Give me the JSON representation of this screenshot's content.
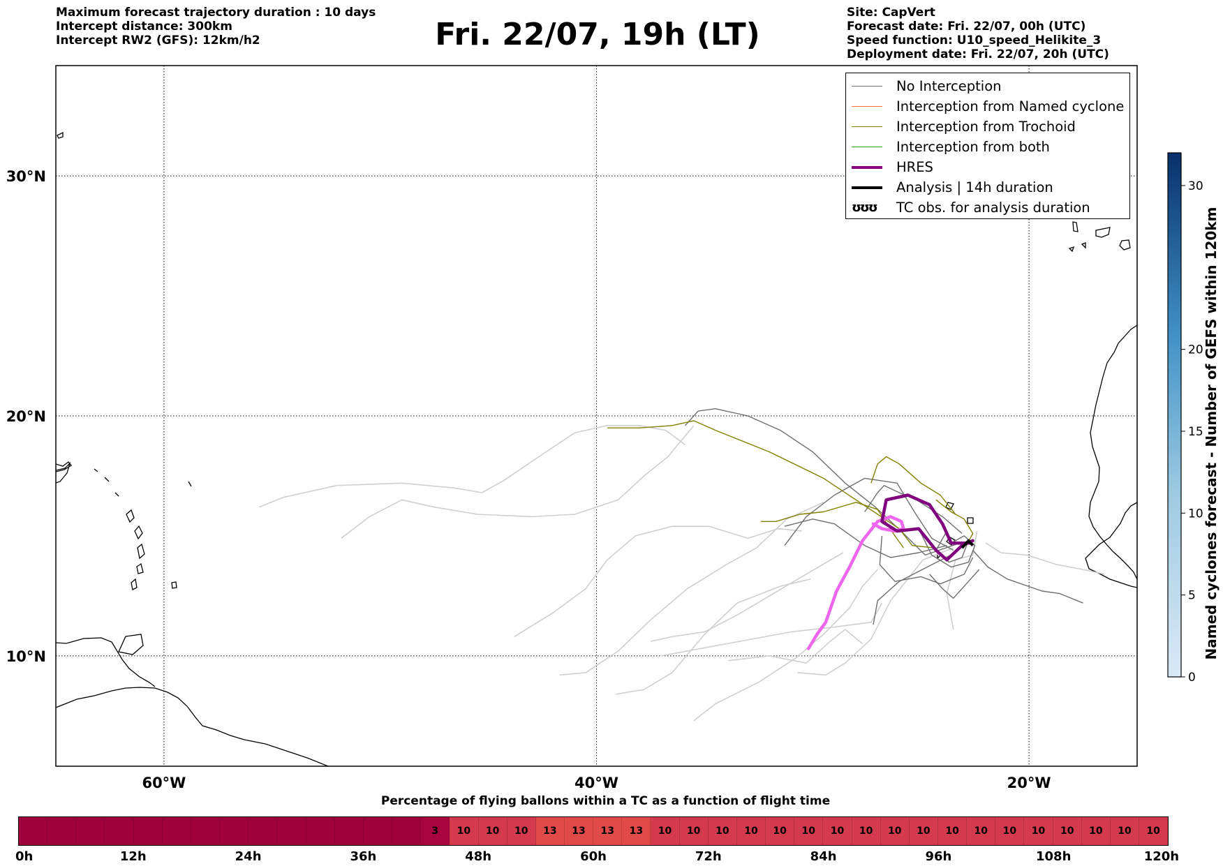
{
  "header": {
    "info_left": [
      "Maximum forecast trajectory duration : 10 days",
      "Intercept distance: 300km",
      "Intercept RW2 (GFS):  12km/h2"
    ],
    "title": "Fri. 22/07, 19h (LT)",
    "info_right": [
      "Site: CapVert",
      "Forecast date: Fri. 22/07, 00h (UTC)",
      "Speed function: U10_speed_Helikite_3",
      "Deployment date: Fri. 22/07, 20h (UTC)"
    ]
  },
  "map": {
    "lon_range": [
      -65,
      -15
    ],
    "lat_range": [
      5.4,
      34.6
    ],
    "lon_ticks": [
      -60,
      -40,
      -20
    ],
    "lon_tick_labels": [
      "60°W",
      "40°W",
      "20°W"
    ],
    "lat_ticks": [
      10,
      20,
      30
    ],
    "lat_tick_labels": [
      "10°N",
      "20°N",
      "30°N"
    ],
    "grid": true,
    "colors": {
      "no_interception": "#6e6e6e",
      "no_interception_light": "#cfcfcf",
      "named_cyclone": "#ff7043",
      "trochoid": "#808000",
      "both": "#2ca02c",
      "hres": "#800080",
      "hres_light": "#ee66ee",
      "analysis": "#000000"
    },
    "tracks_light": [
      [
        [
          -55.6,
          16.2
        ],
        [
          -54.5,
          16.6
        ],
        [
          -52,
          17.1
        ],
        [
          -49,
          17.2
        ],
        [
          -46.6,
          17.0
        ],
        [
          -45.3,
          16.8
        ],
        [
          -44.3,
          17.3
        ],
        [
          -42.5,
          18.4
        ],
        [
          -41.0,
          19.3
        ],
        [
          -39.5,
          19.6
        ],
        [
          -38.0,
          19.6
        ],
        [
          -36.8,
          19.4
        ],
        [
          -35.9,
          18.8
        ]
      ],
      [
        [
          -51.8,
          14.9
        ],
        [
          -50.5,
          15.8
        ],
        [
          -49,
          16.5
        ],
        [
          -47.5,
          16.2
        ],
        [
          -45.5,
          15.9
        ],
        [
          -43.0,
          15.8
        ],
        [
          -41.0,
          15.9
        ],
        [
          -39,
          16.5
        ],
        [
          -37.8,
          17.5
        ],
        [
          -36.7,
          18.3
        ],
        [
          -35.5,
          19.6
        ]
      ],
      [
        [
          -43.8,
          10.8
        ],
        [
          -42.0,
          11.8
        ],
        [
          -40.5,
          12.8
        ],
        [
          -39.5,
          14.0
        ],
        [
          -38.2,
          15.0
        ],
        [
          -36.5,
          15.4
        ],
        [
          -34.8,
          15.4
        ],
        [
          -33.0,
          14.9
        ],
        [
          -31.6,
          15.3
        ],
        [
          -30.5,
          15.2
        ]
      ],
      [
        [
          -41.7,
          9.2
        ],
        [
          -40.5,
          9.3
        ],
        [
          -39,
          10.2
        ],
        [
          -37.5,
          11.5
        ],
        [
          -35.8,
          12.8
        ],
        [
          -34,
          13.8
        ],
        [
          -32.6,
          14.5
        ],
        [
          -31.2,
          15.7
        ],
        [
          -29.5,
          16.4
        ]
      ],
      [
        [
          -39.1,
          8.4
        ],
        [
          -37.8,
          8.6
        ],
        [
          -36.5,
          9.3
        ],
        [
          -35.0,
          10.9
        ],
        [
          -33.5,
          12.2
        ],
        [
          -31.5,
          12.9
        ],
        [
          -30.1,
          13.2
        ]
      ],
      [
        [
          -37.5,
          10.6
        ],
        [
          -36.5,
          10.8
        ],
        [
          -35,
          11.0
        ],
        [
          -33.5,
          11.7
        ],
        [
          -32,
          12.5
        ],
        [
          -30.5,
          13.3
        ],
        [
          -28.6,
          14.3
        ]
      ],
      [
        [
          -35.5,
          7.3
        ],
        [
          -34.5,
          8.0
        ],
        [
          -32.5,
          8.9
        ],
        [
          -30.8,
          9.9
        ],
        [
          -29.5,
          10.9
        ],
        [
          -28.3,
          12.0
        ],
        [
          -27.7,
          12.9
        ],
        [
          -27.0,
          13.6
        ]
      ],
      [
        [
          -33.9,
          9.8
        ],
        [
          -32.0,
          10.0
        ],
        [
          -30.3,
          9.7
        ],
        [
          -29.2,
          10.6
        ],
        [
          -28.5,
          11.1
        ],
        [
          -27.7,
          10.5
        ]
      ],
      [
        [
          -30.7,
          9.3
        ],
        [
          -29.4,
          9.2
        ],
        [
          -28.5,
          9.7
        ],
        [
          -27.3,
          10.7
        ],
        [
          -26.4,
          12.3
        ],
        [
          -24.9,
          14.0
        ],
        [
          -23.5,
          14.5
        ]
      ],
      [
        [
          -23.5,
          11.1
        ],
        [
          -23.8,
          12.6
        ],
        [
          -23.4,
          14.0
        ],
        [
          -22.6,
          14.2
        ],
        [
          -22.4,
          15.2
        ]
      ],
      [
        [
          -22.0,
          14.7
        ],
        [
          -21.3,
          14.3
        ],
        [
          -20.1,
          14.2
        ],
        [
          -18.7,
          13.8
        ],
        [
          -17.5,
          13.6
        ],
        [
          -16.5,
          13.4
        ]
      ],
      [
        [
          -37,
          10
        ],
        [
          -34,
          10.5
        ],
        [
          -31,
          11
        ],
        [
          -29,
          11.2
        ],
        [
          -27.3,
          11.4
        ],
        [
          -26.8,
          12.2
        ]
      ]
    ],
    "tracks_dark": [
      [
        [
          -35.9,
          19.6
        ],
        [
          -35.3,
          20.2
        ],
        [
          -34.5,
          20.3
        ],
        [
          -33,
          20.0
        ],
        [
          -31.5,
          19.4
        ],
        [
          -30,
          18.5
        ],
        [
          -28.5,
          17.2
        ],
        [
          -27.1,
          16.2
        ],
        [
          -25.8,
          15.1
        ],
        [
          -24.8,
          14.2
        ],
        [
          -23.2,
          14.7
        ]
      ],
      [
        [
          -31.3,
          14.6
        ],
        [
          -30.3,
          15.8
        ],
        [
          -29,
          16.7
        ],
        [
          -27.6,
          17.4
        ],
        [
          -26.1,
          17.2
        ],
        [
          -25.3,
          16.0
        ],
        [
          -24.5,
          14.9
        ],
        [
          -23.5,
          14.4
        ]
      ],
      [
        [
          -27.2,
          11.3
        ],
        [
          -27.0,
          12.3
        ],
        [
          -26,
          13.1
        ],
        [
          -24.5,
          13.8
        ],
        [
          -23.4,
          14.3
        ]
      ],
      [
        [
          -22.6,
          14.4
        ],
        [
          -21.9,
          13.7
        ],
        [
          -21.0,
          13.2
        ],
        [
          -19.4,
          12.7
        ],
        [
          -18.6,
          12.6
        ],
        [
          -17.5,
          12.2
        ]
      ],
      [
        [
          -31.3,
          15.4
        ],
        [
          -30.0,
          15.7
        ],
        [
          -29,
          15.5
        ],
        [
          -27.6,
          14.6
        ],
        [
          -26.4,
          14.1
        ],
        [
          -25.1,
          14.3
        ],
        [
          -23.8,
          14.6
        ]
      ],
      [
        [
          -27.6,
          16.0
        ],
        [
          -27.0,
          16.8
        ],
        [
          -26.7,
          17.1
        ],
        [
          -26.0,
          16.8
        ],
        [
          -25.2,
          16.5
        ],
        [
          -24.0,
          15.8
        ],
        [
          -23.1,
          15.1
        ]
      ],
      [
        [
          -26.8,
          15.0
        ],
        [
          -26.9,
          13.8
        ],
        [
          -26.2,
          13.1
        ],
        [
          -25.0,
          13.3
        ],
        [
          -24.1,
          13.0
        ],
        [
          -23.0,
          13.4
        ],
        [
          -22.6,
          14.1
        ]
      ],
      [
        [
          -24.6,
          13.4
        ],
        [
          -24.0,
          12.8
        ],
        [
          -23.5,
          12.4
        ],
        [
          -22.9,
          13.0
        ],
        [
          -22.3,
          13.6
        ]
      ],
      [
        [
          -25.1,
          15.3
        ],
        [
          -24.5,
          14.2
        ],
        [
          -23.6,
          13.7
        ],
        [
          -22.8,
          13.9
        ],
        [
          -22.5,
          14.6
        ],
        [
          -23.0,
          15.0
        ],
        [
          -23.6,
          14.7
        ]
      ],
      [
        [
          -23.8,
          15.2
        ],
        [
          -24.3,
          14.4
        ],
        [
          -23.7,
          13.9
        ],
        [
          -23.1,
          14.1
        ],
        [
          -22.8,
          14.8
        ]
      ]
    ],
    "tracks_trochoid": [
      [
        [
          -39.5,
          19.5
        ],
        [
          -38,
          19.5
        ],
        [
          -36.5,
          19.6
        ],
        [
          -35.5,
          19.8
        ],
        [
          -34.5,
          19.4
        ],
        [
          -32,
          18.5
        ],
        [
          -29.5,
          17.4
        ],
        [
          -27.5,
          16.2
        ],
        [
          -26.0,
          15.3
        ],
        [
          -25.4,
          14.6
        ],
        [
          -24.4,
          14.5
        ]
      ],
      [
        [
          -27.3,
          17.2
        ],
        [
          -27.0,
          18.0
        ],
        [
          -26.6,
          18.3
        ],
        [
          -26.0,
          18.0
        ],
        [
          -25.0,
          17.2
        ],
        [
          -24.1,
          16.7
        ],
        [
          -23.4,
          15.9
        ]
      ],
      [
        [
          -32.4,
          15.6
        ],
        [
          -31.7,
          15.6
        ],
        [
          -30.6,
          15.9
        ],
        [
          -29.5,
          16.0
        ],
        [
          -28,
          16.4
        ],
        [
          -27.0,
          16.1
        ],
        [
          -26.2,
          15.0
        ],
        [
          -25.8,
          14.5
        ]
      ],
      [
        [
          -24.3,
          16.5
        ],
        [
          -23.6,
          16.0
        ],
        [
          -23.0,
          15.7
        ],
        [
          -22.6,
          15.1
        ],
        [
          -22.9,
          14.6
        ]
      ]
    ],
    "hres_track": [
      [
        -22.6,
        14.8
      ],
      [
        -23.1,
        14.6
      ],
      [
        -23.8,
        14.0
      ],
      [
        -24.3,
        14.4
      ],
      [
        -25.1,
        15.3
      ],
      [
        -26.1,
        15.2
      ],
      [
        -26.8,
        15.6
      ],
      [
        -26.6,
        16.5
      ],
      [
        -25.6,
        16.7
      ],
      [
        -24.6,
        16.3
      ],
      [
        -24.0,
        15.5
      ],
      [
        -23.6,
        14.7
      ],
      [
        -22.7,
        14.7
      ]
    ],
    "hres_light_track": [
      [
        -30.2,
        10.3
      ],
      [
        -29.8,
        10.9
      ],
      [
        -29.4,
        11.4
      ],
      [
        -28.9,
        12.7
      ],
      [
        -28.3,
        13.7
      ],
      [
        -27.7,
        14.8
      ],
      [
        -27.0,
        15.6
      ],
      [
        -26.4,
        15.8
      ],
      [
        -25.9,
        15.6
      ],
      [
        -25.8,
        15.3
      ],
      [
        -26.2,
        15.2
      ],
      [
        -26.8,
        15.3
      ],
      [
        -27.2,
        15.5
      ]
    ],
    "analysis_track": [
      [
        -22.6,
        14.6
      ],
      [
        -22.8,
        14.8
      ],
      [
        -23.1,
        14.5
      ]
    ]
  },
  "legend": {
    "items": [
      {
        "label": "No Interception",
        "color": "#6e6e6e",
        "width": 1
      },
      {
        "label": "Interception from Named cyclone",
        "color": "#ff7043",
        "width": 1
      },
      {
        "label": "Interception from Trochoid",
        "color": "#808000",
        "width": 1
      },
      {
        "label": "Interception from both",
        "color": "#2ca02c",
        "width": 1
      },
      {
        "label": "HRES",
        "color": "#800080",
        "width": 4
      },
      {
        "label": "Analysis | 14h duration",
        "color": "#000000",
        "width": 4
      }
    ],
    "tc_obs": {
      "glyph": "ʊʊʊ",
      "label": "TC obs. for analysis duration"
    }
  },
  "colorbar": {
    "title": "Named cyclones forecast - Number of GEFS within 120km",
    "min": 0,
    "max": 32,
    "ticks": [
      0,
      5,
      10,
      15,
      20,
      30
    ],
    "tick_labels": [
      "0",
      "5",
      "10",
      "15",
      "20",
      "30"
    ],
    "color_low": "#dbe9f6",
    "color_high": "#08306b"
  },
  "timebar": {
    "title": "Percentage of flying ballons within a TC as a function of flight time",
    "tick_labels": [
      "0h",
      "12h",
      "24h",
      "36h",
      "48h",
      "60h",
      "72h",
      "84h",
      "96h",
      "108h",
      "120h"
    ],
    "cells": [
      "",
      "",
      "",
      "",
      "",
      "",
      "",
      "",
      "",
      "",
      "",
      "",
      "",
      "",
      "3",
      "10",
      "10",
      "10",
      "13",
      "13",
      "13",
      "13",
      "10",
      "10",
      "10",
      "10",
      "10",
      "10",
      "10",
      "10",
      "10",
      "10",
      "10",
      "10",
      "10",
      "10",
      "10",
      "10",
      "10",
      "10"
    ],
    "colors": {
      "empty": "#9e003a",
      "v3": "#a8043e",
      "v10": "#d33a4d",
      "v13": "#e04a48"
    }
  }
}
